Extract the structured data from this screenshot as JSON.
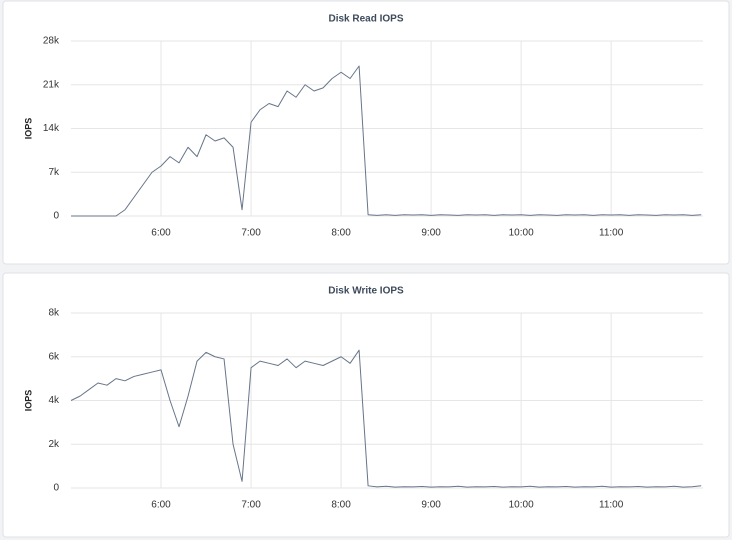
{
  "chart_data": [
    {
      "type": "line",
      "title": "Disk Read IOPS",
      "y_label": "IOPS",
      "color": "#67758a",
      "grid": true,
      "x": [
        5,
        5.1,
        5.2,
        5.3,
        5.4,
        5.5,
        5.6,
        5.7,
        5.8,
        5.9,
        6,
        6.1,
        6.2,
        6.3,
        6.4,
        6.5,
        6.6,
        6.7,
        6.8,
        6.9,
        7,
        7.1,
        7.2,
        7.3,
        7.4,
        7.5,
        7.6,
        7.7,
        7.8,
        7.9,
        8,
        8.1,
        8.2,
        8.3,
        8.4,
        8.5,
        8.6,
        8.7,
        8.8,
        8.9,
        9,
        9.1,
        9.2,
        9.3,
        9.4,
        9.5,
        9.6,
        9.7,
        9.8,
        9.9,
        10,
        10.1,
        10.2,
        10.3,
        10.4,
        10.5,
        10.6,
        10.7,
        10.8,
        10.9,
        11,
        11.1,
        11.2,
        11.3,
        11.4,
        11.5,
        11.6,
        11.7,
        11.8,
        11.9,
        12
      ],
      "values": [
        0,
        0,
        0,
        0,
        0,
        0,
        1000,
        3000,
        5000,
        7000,
        8000,
        9500,
        8500,
        11000,
        9500,
        13000,
        12000,
        12500,
        11000,
        1000,
        15000,
        17000,
        18000,
        17500,
        20000,
        19000,
        21000,
        20000,
        20500,
        22000,
        23000,
        22000,
        24000,
        200,
        100,
        200,
        100,
        200,
        150,
        200,
        100,
        200,
        150,
        100,
        200,
        150,
        200,
        100,
        200,
        150,
        200,
        100,
        200,
        150,
        100,
        200,
        150,
        200,
        100,
        200,
        150,
        200,
        100,
        200,
        150,
        100,
        200,
        150,
        200,
        100,
        200
      ],
      "xlim": [
        5,
        12.02
      ],
      "xticks": [
        {
          "value": 6,
          "label": "6:00"
        },
        {
          "value": 7,
          "label": "7:00"
        },
        {
          "value": 8,
          "label": "8:00"
        },
        {
          "value": 9,
          "label": "9:00"
        },
        {
          "value": 10,
          "label": "10:00"
        },
        {
          "value": 11,
          "label": "11:00"
        }
      ],
      "ylim": [
        0,
        28000
      ],
      "yticks": [
        0,
        {
          "value": 7000,
          "label": "7k"
        },
        {
          "value": 14000,
          "label": "14k"
        },
        {
          "value": 21000,
          "label": "21k"
        },
        {
          "value": 28000,
          "label": "28k"
        }
      ]
    },
    {
      "type": "line",
      "title": "Disk Write IOPS",
      "y_label": "IOPS",
      "color": "#67758a",
      "grid": true,
      "x": [
        5,
        5.1,
        5.2,
        5.3,
        5.4,
        5.5,
        5.6,
        5.7,
        5.8,
        5.9,
        6,
        6.1,
        6.2,
        6.3,
        6.4,
        6.5,
        6.6,
        6.7,
        6.8,
        6.9,
        7,
        7.1,
        7.2,
        7.3,
        7.4,
        7.5,
        7.6,
        7.7,
        7.8,
        7.9,
        8,
        8.1,
        8.2,
        8.3,
        8.4,
        8.5,
        8.6,
        8.7,
        8.8,
        8.9,
        9,
        9.1,
        9.2,
        9.3,
        9.4,
        9.5,
        9.6,
        9.7,
        9.8,
        9.9,
        10,
        10.1,
        10.2,
        10.3,
        10.4,
        10.5,
        10.6,
        10.7,
        10.8,
        10.9,
        11,
        11.1,
        11.2,
        11.3,
        11.4,
        11.5,
        11.6,
        11.7,
        11.8,
        11.9,
        12
      ],
      "values": [
        4000,
        4200,
        4500,
        4800,
        4700,
        5000,
        4900,
        5100,
        5200,
        5300,
        5400,
        4000,
        2800,
        4200,
        5800,
        6200,
        6000,
        5900,
        2000,
        300,
        5500,
        5800,
        5700,
        5600,
        5900,
        5500,
        5800,
        5700,
        5600,
        5800,
        6000,
        5700,
        6300,
        100,
        50,
        80,
        40,
        60,
        50,
        70,
        40,
        60,
        50,
        80,
        40,
        60,
        50,
        70,
        40,
        60,
        50,
        80,
        40,
        60,
        50,
        70,
        40,
        60,
        50,
        80,
        40,
        60,
        50,
        70,
        40,
        60,
        50,
        80,
        40,
        60,
        100
      ],
      "xlim": [
        5,
        12.02
      ],
      "xticks": [
        {
          "value": 6,
          "label": "6:00"
        },
        {
          "value": 7,
          "label": "7:00"
        },
        {
          "value": 8,
          "label": "8:00"
        },
        {
          "value": 9,
          "label": "9:00"
        },
        {
          "value": 10,
          "label": "10:00"
        },
        {
          "value": 11,
          "label": "11:00"
        }
      ],
      "ylim": [
        0,
        8000
      ],
      "yticks": [
        0,
        {
          "value": 2000,
          "label": "2k"
        },
        {
          "value": 4000,
          "label": "4k"
        },
        {
          "value": 6000,
          "label": "6k"
        },
        {
          "value": 8000,
          "label": "8k"
        }
      ]
    }
  ]
}
